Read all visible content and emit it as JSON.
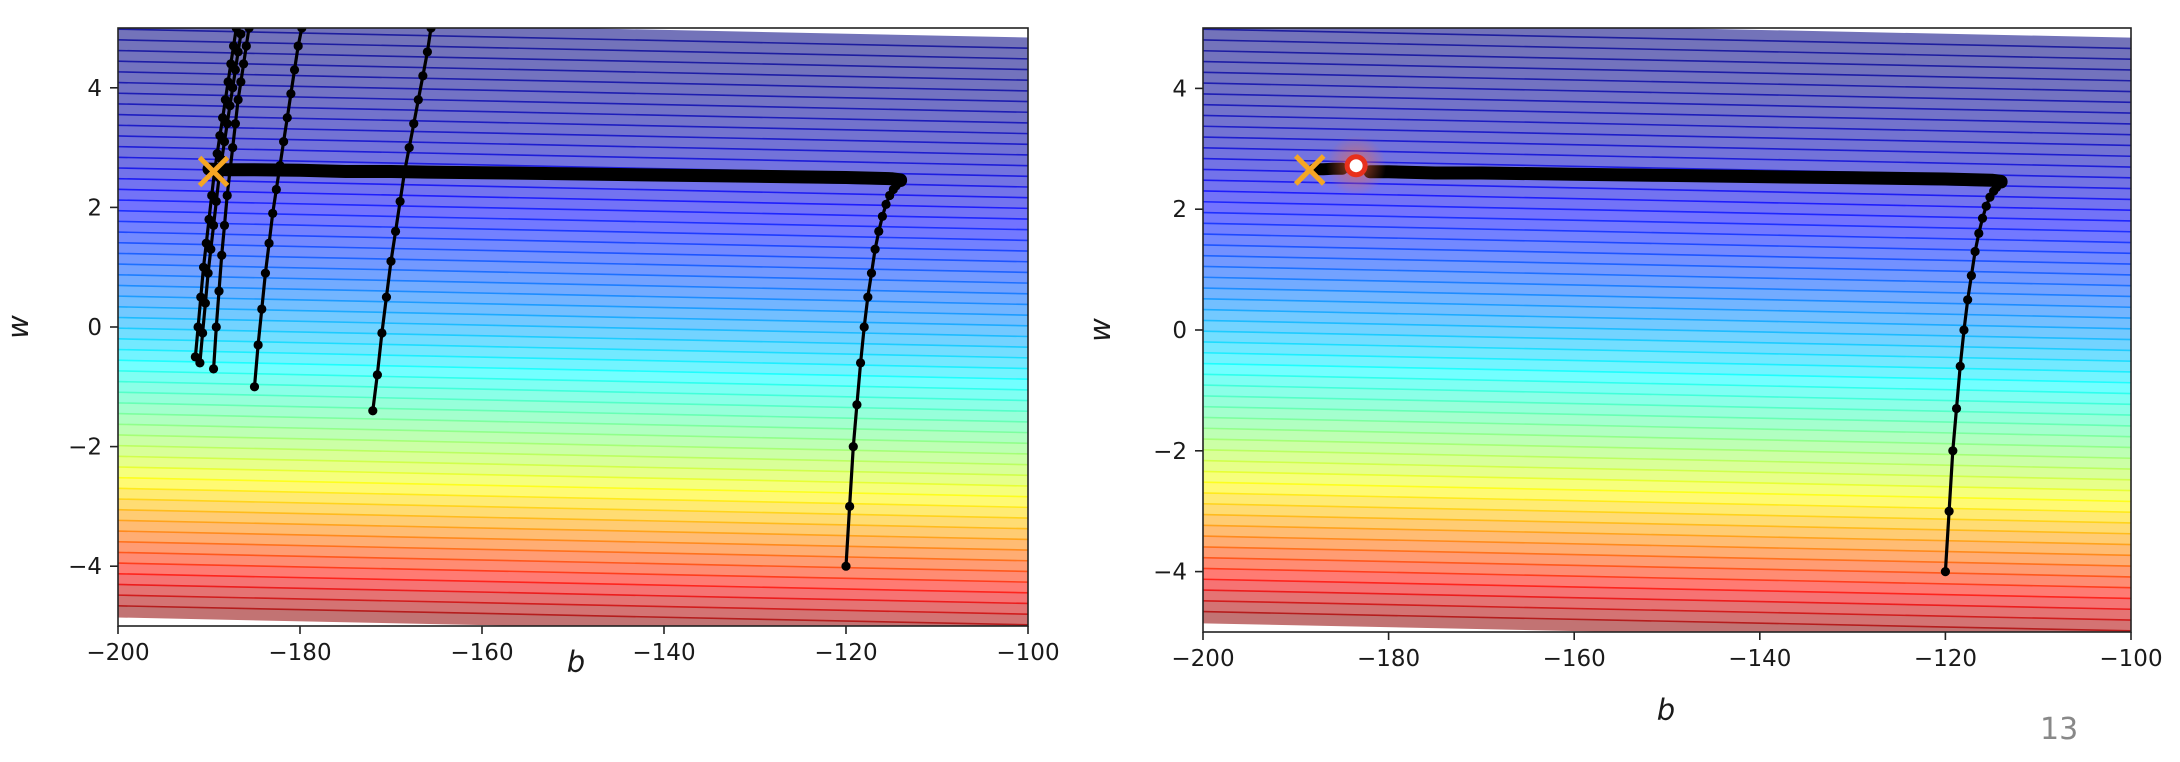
{
  "page_number": "13",
  "chart_data": [
    {
      "type": "line",
      "title": "",
      "xlabel": "b",
      "ylabel": "w",
      "xlim": [
        -200,
        -100
      ],
      "ylim": [
        -5,
        5
      ],
      "xticks": [
        -200,
        -180,
        -160,
        -140,
        -120,
        -100
      ],
      "yticks": [
        -4,
        -2,
        0,
        2,
        4
      ],
      "xtick_labels": [
        "−200",
        "−180",
        "−160",
        "−140",
        "−120",
        "−100"
      ],
      "ytick_labels": [
        "−4",
        "−2",
        "0",
        "2",
        "4"
      ],
      "background": "contour",
      "colormap": "jet",
      "colors": {
        "trajectory": "#000000",
        "target_marker": "#f5a623"
      },
      "markers": [
        {
          "type": "x",
          "x": -189.5,
          "y": 2.6
        }
      ],
      "series": [
        {
          "x": [
            -120,
            -119.6,
            -119.2,
            -118.8,
            -118.4,
            -118,
            -117.6,
            -117.2,
            -116.8,
            -116.4,
            -116,
            -115.6,
            -115.2,
            -114.8,
            -114.5,
            -114.3,
            -114.2,
            -114.1,
            -114,
            -114,
            -115,
            -120,
            -130,
            -140,
            -150,
            -160,
            -166,
            -170,
            -175,
            -180,
            -185,
            -188,
            -190
          ],
          "y": [
            -4,
            -3,
            -2,
            -1.3,
            -0.6,
            0,
            0.5,
            0.9,
            1.3,
            1.6,
            1.85,
            2.05,
            2.2,
            2.3,
            2.36,
            2.4,
            2.42,
            2.44,
            2.45,
            2.46,
            2.48,
            2.5,
            2.52,
            2.54,
            2.56,
            2.58,
            2.59,
            2.6,
            2.6,
            2.62,
            2.63,
            2.63,
            2.64
          ]
        },
        {
          "x": [
            -172,
            -171.5,
            -171,
            -170.5,
            -170,
            -169.5,
            -169,
            -168.5,
            -168,
            -167.5,
            -167,
            -166.5,
            -166,
            -165.6
          ],
          "y": [
            -1.4,
            -0.8,
            -0.1,
            0.5,
            1.1,
            1.6,
            2.1,
            2.6,
            3.0,
            3.4,
            3.8,
            4.2,
            4.6,
            5.0
          ]
        },
        {
          "x": [
            -185,
            -184.6,
            -184.2,
            -183.8,
            -183.4,
            -183,
            -182.6,
            -182.2,
            -181.8,
            -181.4,
            -181,
            -180.6,
            -180.2,
            -179.8
          ],
          "y": [
            -1.0,
            -0.3,
            0.3,
            0.9,
            1.4,
            1.9,
            2.3,
            2.7,
            3.1,
            3.5,
            3.9,
            4.3,
            4.7,
            5.0
          ]
        },
        {
          "x": [
            -189.5,
            -189.2,
            -188.9,
            -188.6,
            -188.3,
            -188,
            -187.7,
            -187.4,
            -187.1,
            -186.8,
            -186.5,
            -186.2,
            -185.9,
            -185.6
          ],
          "y": [
            -0.7,
            0,
            0.6,
            1.2,
            1.7,
            2.2,
            2.6,
            3.0,
            3.4,
            3.8,
            4.1,
            4.4,
            4.7,
            5.0
          ]
        },
        {
          "x": [
            -191.5,
            -191.2,
            -190.9,
            -190.6,
            -190.3,
            -190,
            -189.7,
            -189.4,
            -189.1,
            -188.8,
            -188.5,
            -188.2,
            -187.9,
            -187.6,
            -187.3,
            -187
          ],
          "y": [
            -0.5,
            0,
            0.5,
            1.0,
            1.4,
            1.8,
            2.2,
            2.6,
            2.9,
            3.2,
            3.5,
            3.8,
            4.1,
            4.4,
            4.7,
            5.0
          ]
        },
        {
          "x": [
            -191,
            -190.7,
            -190.4,
            -190.1,
            -189.8,
            -189.5,
            -189.2,
            -188.9,
            -188.6,
            -188.3,
            -188,
            -187.7,
            -187.4,
            -187.1,
            -186.8,
            -186.5
          ],
          "y": [
            -0.6,
            -0.1,
            0.4,
            0.9,
            1.3,
            1.7,
            2.1,
            2.5,
            2.8,
            3.1,
            3.4,
            3.7,
            4.0,
            4.3,
            4.6,
            4.9
          ]
        }
      ]
    },
    {
      "type": "line",
      "title": "",
      "xlabel": "b",
      "ylabel": "w",
      "xlim": [
        -200,
        -100
      ],
      "ylim": [
        -5,
        5
      ],
      "xticks": [
        -200,
        -180,
        -160,
        -140,
        -120,
        -100
      ],
      "yticks": [
        -4,
        -2,
        0,
        2,
        4
      ],
      "xtick_labels": [
        "−200",
        "−180",
        "−160",
        "−140",
        "−120",
        "−100"
      ],
      "ytick_labels": [
        "−4",
        "−2",
        "0",
        "2",
        "4"
      ],
      "background": "contour",
      "colormap": "jet",
      "colors": {
        "trajectory": "#000000",
        "target_marker": "#f5a623",
        "current_point": "#e8301c"
      },
      "markers": [
        {
          "type": "x",
          "x": -188.5,
          "y": 2.65
        },
        {
          "type": "circle",
          "x": -183.5,
          "y": 2.72
        }
      ],
      "series": [
        {
          "x": [
            -120,
            -119.6,
            -119.2,
            -118.8,
            -118.4,
            -118,
            -117.6,
            -117.2,
            -116.8,
            -116.4,
            -116,
            -115.6,
            -115.2,
            -114.8,
            -114.5,
            -114.3,
            -114.2,
            -114.1,
            -114,
            -114,
            -115,
            -120,
            -130,
            -140,
            -150,
            -160,
            -170,
            -175,
            -180,
            -182
          ],
          "y": [
            -4,
            -3,
            -2,
            -1.3,
            -0.6,
            0,
            0.5,
            0.9,
            1.3,
            1.6,
            1.85,
            2.05,
            2.2,
            2.3,
            2.36,
            2.4,
            2.42,
            2.44,
            2.45,
            2.46,
            2.48,
            2.5,
            2.52,
            2.54,
            2.56,
            2.58,
            2.6,
            2.6,
            2.62,
            2.62
          ]
        },
        {
          "x": [
            -188,
            -187,
            -186,
            -185
          ],
          "y": [
            2.66,
            2.66,
            2.67,
            2.67
          ]
        }
      ]
    }
  ]
}
